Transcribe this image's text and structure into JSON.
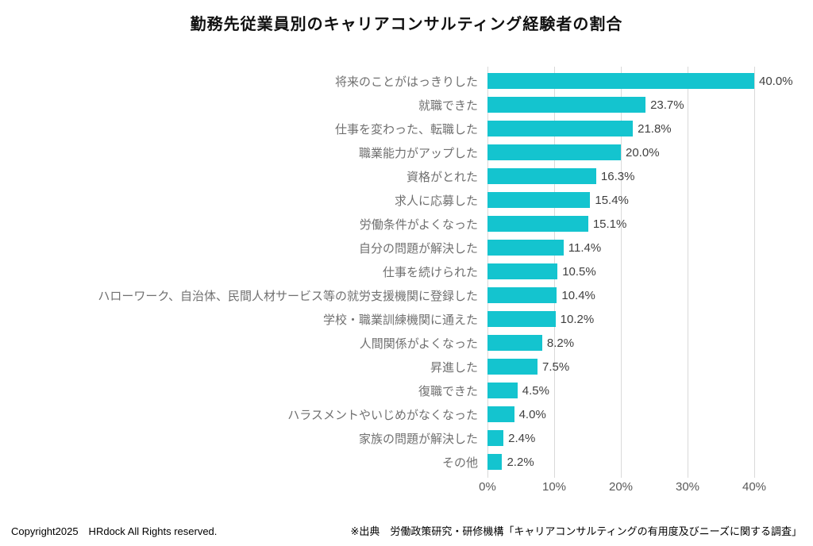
{
  "chart_data": {
    "type": "bar",
    "orientation": "horizontal",
    "title": "勤務先従業員別のキャリアコンサルティング経験者の割合",
    "categories": [
      "将来のことがはっきりした",
      "就職できた",
      "仕事を変わった、転職した",
      "職業能力がアップした",
      "資格がとれた",
      "求人に応募した",
      "労働条件がよくなった",
      "自分の問題が解決した",
      "仕事を続けられた",
      "ハローワーク、自治体、民間人材サービス等の就労支援機関に登録した",
      "学校・職業訓練機関に通えた",
      "人間関係がよくなった",
      "昇進した",
      "復職できた",
      "ハラスメントやいじめがなくなった",
      "家族の問題が解決した",
      "その他"
    ],
    "values": [
      40.0,
      23.7,
      21.8,
      20.0,
      16.3,
      15.4,
      15.1,
      11.4,
      10.5,
      10.4,
      10.2,
      8.2,
      7.5,
      4.5,
      4.0,
      2.4,
      2.2
    ],
    "value_labels": [
      "40.0%",
      "23.7%",
      "21.8%",
      "20.0%",
      "16.3%",
      "15.4%",
      "15.1%",
      "11.4%",
      "10.5%",
      "10.4%",
      "10.2%",
      "8.2%",
      "7.5%",
      "4.5%",
      "4.0%",
      "2.4%",
      "2.2%"
    ],
    "xlabel": "",
    "ylabel": "",
    "xlim": [
      0,
      48
    ],
    "x_ticks": [
      "0%",
      "10%",
      "20%",
      "30%",
      "40%"
    ],
    "x_tick_values": [
      0,
      10,
      20,
      30,
      40
    ],
    "grid": true,
    "legend": false,
    "bar_color": "#14c4cf",
    "gridline_color": "#d9d9d9",
    "category_label_color": "#707070",
    "value_label_color": "#404040",
    "tick_label_color": "#595959"
  },
  "footer": {
    "copyright": "Copyright2025　HRdock All Rights reserved.",
    "source": "※出典　労働政策研究・研修機構「キャリアコンサルティングの有用度及びニーズに関する調査」"
  }
}
